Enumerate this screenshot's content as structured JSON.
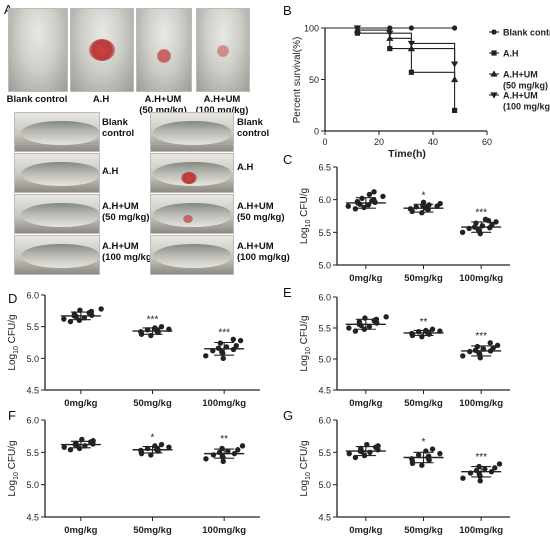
{
  "panel_letters": {
    "a": "A",
    "b": "B",
    "c": "C",
    "d": "D",
    "e": "E",
    "f": "F",
    "g": "G"
  },
  "panel_a": {
    "top_labels": [
      "Blank control",
      "A.H",
      "A.H+UM\n(50 mg/kg)",
      "A.H+UM\n(100 mg/kg)"
    ],
    "side_labels": [
      "Blank\ncontrol",
      "A.H",
      "A.H+UM\n(50 mg/kg)",
      "A.H+UM\n(100 mg/kg)"
    ]
  },
  "colors": {
    "line": "#222222",
    "point": "#222222"
  },
  "chart_data": [
    {
      "id": "B",
      "type": "line",
      "xlabel": "Time(h)",
      "ylabel": "Percent survival(%)",
      "xlim": [
        0,
        60
      ],
      "ylim": [
        0,
        100
      ],
      "xticks": [
        0,
        20,
        40,
        60
      ],
      "yticks": [
        0,
        50,
        100
      ],
      "grid": false,
      "legend_position": "right",
      "series": [
        {
          "name": "Blank control",
          "marker": "circle",
          "x": [
            0,
            12,
            24,
            32,
            48
          ],
          "y": [
            100,
            100,
            100,
            100,
            100
          ]
        },
        {
          "name": "A.H",
          "marker": "square",
          "x": [
            0,
            12,
            24,
            32,
            48
          ],
          "y": [
            100,
            95,
            80,
            57,
            20
          ]
        },
        {
          "name": "A.H+UM\n(50 mg/kg)",
          "marker": "triangle-up",
          "x": [
            0,
            12,
            24,
            32,
            48
          ],
          "y": [
            100,
            98,
            90,
            80,
            50
          ]
        },
        {
          "name": "A.H+UM\n(100 mg/kg)",
          "marker": "triangle-down",
          "x": [
            0,
            12,
            24,
            32,
            48
          ],
          "y": [
            100,
            100,
            95,
            85,
            65
          ]
        }
      ]
    },
    {
      "id": "C",
      "type": "scatter",
      "ylabel": "Log10 CFU/g",
      "ylim": [
        5.0,
        6.5
      ],
      "yticks": [
        5.0,
        5.5,
        6.0,
        6.5
      ],
      "categories": [
        "0mg/kg",
        "50mg/kg",
        "100mg/kg"
      ],
      "means": [
        5.95,
        5.87,
        5.58
      ],
      "sd": [
        0.08,
        0.06,
        0.08
      ],
      "significance": [
        "",
        "*",
        "***"
      ],
      "points": [
        [
          5.86,
          5.88,
          5.9,
          5.92,
          5.93,
          5.95,
          5.96,
          5.97,
          5.98,
          6.0,
          6.02,
          6.05,
          6.08,
          6.12
        ],
        [
          5.8,
          5.82,
          5.84,
          5.85,
          5.86,
          5.87,
          5.88,
          5.89,
          5.9,
          5.91,
          5.92,
          5.94,
          5.96
        ],
        [
          5.48,
          5.5,
          5.52,
          5.54,
          5.56,
          5.57,
          5.58,
          5.6,
          5.62,
          5.64,
          5.66,
          5.68,
          5.7
        ]
      ]
    },
    {
      "id": "D",
      "type": "scatter",
      "ylabel": "Log10 CFU/g",
      "ylim": [
        4.5,
        6.0
      ],
      "yticks": [
        4.5,
        5.0,
        5.5,
        6.0
      ],
      "categories": [
        "0mg/kg",
        "50mg/kg",
        "100mg/kg"
      ],
      "means": [
        5.67,
        5.43,
        5.15
      ],
      "sd": [
        0.06,
        0.05,
        0.1
      ],
      "significance": [
        "",
        "***",
        "***"
      ],
      "points": [
        [
          5.58,
          5.6,
          5.62,
          5.64,
          5.66,
          5.67,
          5.68,
          5.7,
          5.72,
          5.74,
          5.76,
          5.78
        ],
        [
          5.36,
          5.38,
          5.4,
          5.41,
          5.42,
          5.43,
          5.44,
          5.45,
          5.46,
          5.48,
          5.5
        ],
        [
          5.0,
          5.04,
          5.08,
          5.1,
          5.12,
          5.14,
          5.16,
          5.18,
          5.2,
          5.24,
          5.28,
          5.3
        ]
      ]
    },
    {
      "id": "E",
      "type": "scatter",
      "ylabel": "Log10 CFU/g",
      "ylim": [
        4.5,
        6.0
      ],
      "yticks": [
        4.5,
        5.0,
        5.5,
        6.0
      ],
      "categories": [
        "0mg/kg",
        "50mg/kg",
        "100mg/kg"
      ],
      "means": [
        5.56,
        5.42,
        5.13
      ],
      "sd": [
        0.08,
        0.04,
        0.08
      ],
      "significance": [
        "",
        "**",
        "***"
      ],
      "points": [
        [
          5.45,
          5.48,
          5.5,
          5.52,
          5.54,
          5.56,
          5.58,
          5.6,
          5.62,
          5.64,
          5.66,
          5.68
        ],
        [
          5.36,
          5.38,
          5.39,
          5.4,
          5.41,
          5.42,
          5.43,
          5.44,
          5.45,
          5.46,
          5.48
        ],
        [
          5.02,
          5.05,
          5.08,
          5.1,
          5.12,
          5.13,
          5.14,
          5.16,
          5.18,
          5.2,
          5.22,
          5.26
        ]
      ]
    },
    {
      "id": "F",
      "type": "scatter",
      "ylabel": "Log10 CFU/g",
      "ylim": [
        4.5,
        6.0
      ],
      "yticks": [
        4.5,
        5.0,
        5.5,
        6.0
      ],
      "categories": [
        "0mg/kg",
        "50mg/kg",
        "100mg/kg"
      ],
      "means": [
        5.62,
        5.54,
        5.48
      ],
      "sd": [
        0.05,
        0.05,
        0.07
      ],
      "significance": [
        "",
        "*",
        "**"
      ],
      "points": [
        [
          5.54,
          5.56,
          5.58,
          5.6,
          5.61,
          5.62,
          5.63,
          5.64,
          5.66,
          5.68,
          5.7
        ],
        [
          5.46,
          5.48,
          5.5,
          5.52,
          5.53,
          5.54,
          5.55,
          5.56,
          5.58,
          5.6,
          5.62
        ],
        [
          5.36,
          5.4,
          5.42,
          5.44,
          5.46,
          5.48,
          5.5,
          5.52,
          5.54,
          5.56,
          5.6
        ]
      ]
    },
    {
      "id": "G",
      "type": "scatter",
      "ylabel": "Log10 CFU/g",
      "ylim": [
        4.5,
        6.0
      ],
      "yticks": [
        4.5,
        5.0,
        5.5,
        6.0
      ],
      "categories": [
        "0mg/kg",
        "50mg/kg",
        "100mg/kg"
      ],
      "means": [
        5.52,
        5.42,
        5.2
      ],
      "sd": [
        0.07,
        0.08,
        0.08
      ],
      "significance": [
        "",
        "*",
        "***"
      ],
      "points": [
        [
          5.42,
          5.45,
          5.48,
          5.5,
          5.51,
          5.52,
          5.54,
          5.56,
          5.58,
          5.6,
          5.62
        ],
        [
          5.3,
          5.33,
          5.36,
          5.38,
          5.4,
          5.42,
          5.44,
          5.46,
          5.48,
          5.52,
          5.55
        ],
        [
          5.06,
          5.1,
          5.13,
          5.16,
          5.18,
          5.2,
          5.22,
          5.24,
          5.26,
          5.28,
          5.32
        ]
      ]
    }
  ]
}
